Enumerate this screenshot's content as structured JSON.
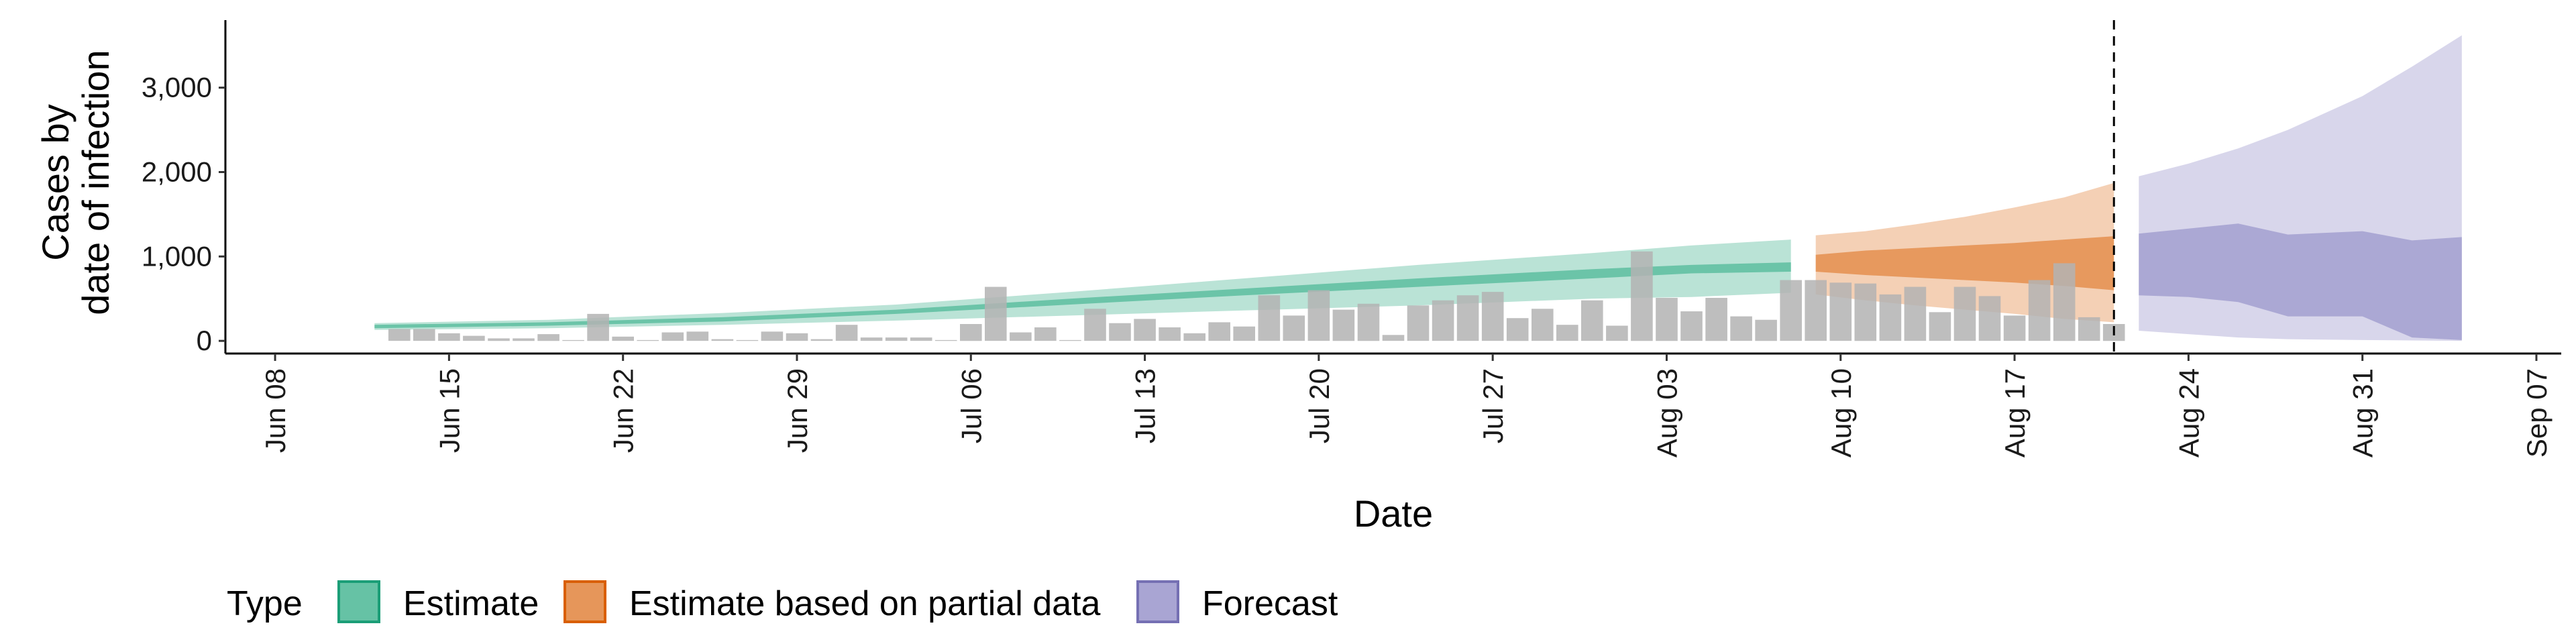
{
  "chart_data": {
    "type": "bar+area",
    "xlabel": "Date",
    "ylabel_lines": [
      "Cases by",
      "date of infection"
    ],
    "xlim": [
      "2020-06-06",
      "2020-09-08"
    ],
    "ylim": [
      -150,
      3800
    ],
    "y_ticks": [
      0,
      1000,
      2000,
      3000
    ],
    "y_tick_labels": [
      "0",
      "1,000",
      "2,000",
      "3,000"
    ],
    "x_ticks": [
      "2020-06-08",
      "2020-06-15",
      "2020-06-22",
      "2020-06-29",
      "2020-07-06",
      "2020-07-13",
      "2020-07-20",
      "2020-07-27",
      "2020-08-03",
      "2020-08-10",
      "2020-08-17",
      "2020-08-24",
      "2020-08-31",
      "2020-09-07"
    ],
    "x_tick_labels": [
      "Jun 08",
      "Jun 15",
      "Jun 22",
      "Jun 29",
      "Jul 06",
      "Jul 13",
      "Jul 20",
      "Jul 27",
      "Aug 03",
      "Aug 10",
      "Aug 17",
      "Aug 24",
      "Aug 31",
      "Sep 07"
    ],
    "vline_date": "2020-08-21",
    "grid": false,
    "legend": {
      "title": "Type",
      "position": "bottom",
      "entries": [
        {
          "label": "Estimate",
          "fill": "#66c2a5",
          "stroke": "#1b9e77"
        },
        {
          "label": "Estimate based on partial data",
          "fill": "#e6965a",
          "stroke": "#d95f02"
        },
        {
          "label": "Forecast",
          "fill": "#a9a5d3",
          "stroke": "#7570b3"
        }
      ]
    },
    "reported_cases": {
      "color": "#b3b3b3",
      "x": [
        "2020-06-13",
        "2020-06-14",
        "2020-06-15",
        "2020-06-16",
        "2020-06-17",
        "2020-06-18",
        "2020-06-19",
        "2020-06-20",
        "2020-06-21",
        "2020-06-22",
        "2020-06-23",
        "2020-06-24",
        "2020-06-25",
        "2020-06-26",
        "2020-06-27",
        "2020-06-28",
        "2020-06-29",
        "2020-06-30",
        "2020-07-01",
        "2020-07-02",
        "2020-07-03",
        "2020-07-04",
        "2020-07-05",
        "2020-07-06",
        "2020-07-07",
        "2020-07-08",
        "2020-07-09",
        "2020-07-10",
        "2020-07-11",
        "2020-07-12",
        "2020-07-13",
        "2020-07-14",
        "2020-07-15",
        "2020-07-16",
        "2020-07-17",
        "2020-07-18",
        "2020-07-19",
        "2020-07-20",
        "2020-07-21",
        "2020-07-22",
        "2020-07-23",
        "2020-07-24",
        "2020-07-25",
        "2020-07-26",
        "2020-07-27",
        "2020-07-28",
        "2020-07-29",
        "2020-07-30",
        "2020-07-31",
        "2020-08-01",
        "2020-08-02",
        "2020-08-03",
        "2020-08-04",
        "2020-08-05",
        "2020-08-06",
        "2020-08-07",
        "2020-08-08",
        "2020-08-09",
        "2020-08-10",
        "2020-08-11",
        "2020-08-12",
        "2020-08-13",
        "2020-08-14",
        "2020-08-15",
        "2020-08-16",
        "2020-08-17",
        "2020-08-18",
        "2020-08-19",
        "2020-08-20",
        "2020-08-21"
      ],
      "values": [
        140,
        140,
        90,
        60,
        30,
        30,
        80,
        10,
        320,
        50,
        10,
        100,
        110,
        20,
        10,
        110,
        90,
        20,
        190,
        40,
        40,
        40,
        10,
        200,
        640,
        100,
        160,
        10,
        380,
        210,
        260,
        160,
        90,
        220,
        170,
        540,
        300,
        600,
        370,
        440,
        70,
        420,
        480,
        540,
        580,
        270,
        380,
        190,
        480,
        180,
        1060,
        510,
        350,
        510,
        290,
        250,
        720,
        720,
        690,
        680,
        550,
        640,
        340,
        640,
        530,
        300,
        720,
        920,
        280,
        200
      ]
    },
    "series": [
      {
        "name": "Estimate",
        "fill": "#66c2a5",
        "x": [
          "2020-06-12",
          "2020-06-19",
          "2020-06-26",
          "2020-07-03",
          "2020-07-10",
          "2020-07-17",
          "2020-07-24",
          "2020-07-31",
          "2020-08-04",
          "2020-08-08"
        ],
        "outer_lower": [
          130,
          150,
          190,
          240,
          300,
          360,
          420,
          500,
          520,
          570
        ],
        "outer_upper": [
          210,
          250,
          330,
          430,
          580,
          740,
          900,
          1040,
          1130,
          1200
        ],
        "inner_lower": [
          150,
          180,
          230,
          320,
          430,
          540,
          640,
          740,
          800,
          820
        ],
        "inner_upper": [
          190,
          220,
          280,
          370,
          500,
          620,
          740,
          850,
          900,
          930
        ]
      },
      {
        "name": "Estimate based on partial data",
        "fill": "#e6965a",
        "x": [
          "2020-08-09",
          "2020-08-11",
          "2020-08-13",
          "2020-08-15",
          "2020-08-17",
          "2020-08-19",
          "2020-08-21"
        ],
        "outer_lower": [
          550,
          480,
          420,
          370,
          320,
          260,
          220
        ],
        "outer_upper": [
          1250,
          1300,
          1380,
          1470,
          1580,
          1700,
          1870
        ],
        "inner_lower": [
          820,
          780,
          750,
          720,
          690,
          650,
          600
        ],
        "inner_upper": [
          1020,
          1070,
          1100,
          1130,
          1160,
          1200,
          1240
        ]
      },
      {
        "name": "Forecast",
        "fill": "#a9a5d3",
        "x": [
          "2020-08-22",
          "2020-08-24",
          "2020-08-26",
          "2020-08-28",
          "2020-08-31",
          "2020-09-02",
          "2020-09-04"
        ],
        "outer_lower": [
          120,
          80,
          40,
          20,
          10,
          5,
          0
        ],
        "outer_upper": [
          1950,
          2100,
          2280,
          2500,
          2900,
          3250,
          3620
        ],
        "inner_lower": [
          540,
          520,
          460,
          290,
          290,
          40,
          10
        ],
        "inner_upper": [
          1270,
          1330,
          1390,
          1260,
          1300,
          1190,
          1230
        ]
      }
    ]
  }
}
